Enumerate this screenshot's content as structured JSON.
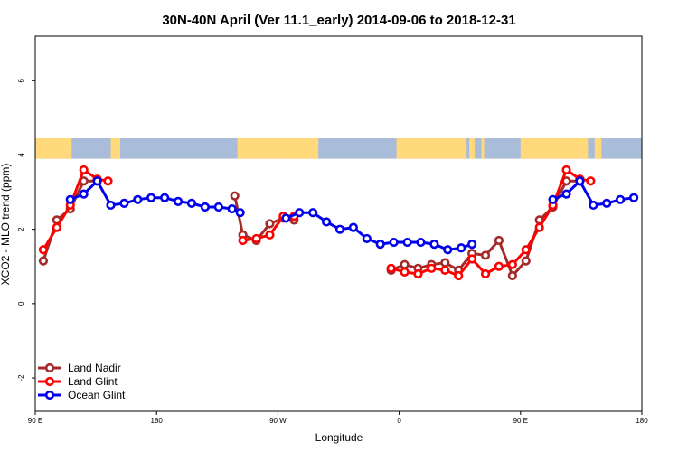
{
  "chart_data": {
    "type": "line",
    "title": "30N-40N April (Ver 11.1_early)   2014-09-06 to 2018-12-31",
    "xlabel": "Longitude",
    "ylabel": "XCO2 - MLO trend (ppm)",
    "xlim": [
      90,
      540
    ],
    "ylim": [
      -2.9,
      7.2
    ],
    "x_ticks": [
      {
        "value": 90,
        "label": "90 E"
      },
      {
        "value": 180,
        "label": "180"
      },
      {
        "value": 270,
        "label": "90 W"
      },
      {
        "value": 360,
        "label": "0"
      },
      {
        "value": 450,
        "label": "90 E"
      },
      {
        "value": 540,
        "label": "180"
      }
    ],
    "y_ticks": [
      {
        "value": -2,
        "label": "-2"
      },
      {
        "value": 0,
        "label": "0"
      },
      {
        "value": 2,
        "label": "2"
      },
      {
        "value": 4,
        "label": "4"
      },
      {
        "value": 6,
        "label": "6"
      }
    ],
    "grid": false,
    "legend_position": "bottom-left",
    "land_mask_band": {
      "ymin": 3.9,
      "ymax": 4.45,
      "land_color": "#FFD97A",
      "ocean_color": "#A9BCD9",
      "land_x_ranges": [
        [
          90,
          117
        ],
        [
          146,
          153
        ],
        [
          240,
          243
        ],
        [
          242,
          298
        ],
        [
          280,
          300
        ],
        [
          358,
          410
        ],
        [
          412,
          416
        ],
        [
          421,
          423
        ],
        [
          450,
          494
        ],
        [
          486,
          491
        ],
        [
          493,
          496
        ],
        [
          495,
          500
        ],
        [
          505,
          510
        ]
      ]
    },
    "series": [
      {
        "name": "Land Nadir",
        "color": "#A52A2A",
        "segments": [
          [
            {
              "x": 96,
              "y": 1.15
            },
            {
              "x": 106,
              "y": 2.25
            },
            {
              "x": 116,
              "y": 2.55
            },
            {
              "x": 126,
              "y": 3.3
            },
            {
              "x": 136,
              "y": 3.3
            }
          ],
          [
            {
              "x": 238,
              "y": 2.9
            },
            {
              "x": 244,
              "y": 1.85
            },
            {
              "x": 254,
              "y": 1.7
            },
            {
              "x": 264,
              "y": 2.15
            },
            {
              "x": 274,
              "y": 2.3
            },
            {
              "x": 282,
              "y": 2.25
            }
          ],
          [
            {
              "x": 354,
              "y": 0.9
            },
            {
              "x": 364,
              "y": 1.05
            },
            {
              "x": 374,
              "y": 0.95
            },
            {
              "x": 384,
              "y": 1.05
            },
            {
              "x": 394,
              "y": 1.1
            },
            {
              "x": 404,
              "y": 0.9
            },
            {
              "x": 414,
              "y": 1.35
            },
            {
              "x": 424,
              "y": 1.3
            },
            {
              "x": 434,
              "y": 1.7
            },
            {
              "x": 444,
              "y": 0.75
            },
            {
              "x": 454,
              "y": 1.15
            },
            {
              "x": 464,
              "y": 2.25
            },
            {
              "x": 474,
              "y": 2.6
            },
            {
              "x": 484,
              "y": 3.3
            },
            {
              "x": 494,
              "y": 3.3
            }
          ]
        ]
      },
      {
        "name": "Land Glint",
        "color": "#FF0000",
        "segments": [
          [
            {
              "x": 96,
              "y": 1.45
            },
            {
              "x": 106,
              "y": 2.05
            },
            {
              "x": 116,
              "y": 2.65
            },
            {
              "x": 126,
              "y": 3.6
            },
            {
              "x": 136,
              "y": 3.35
            },
            {
              "x": 144,
              "y": 3.3
            }
          ],
          [
            {
              "x": 244,
              "y": 1.7
            },
            {
              "x": 254,
              "y": 1.75
            },
            {
              "x": 264,
              "y": 1.85
            },
            {
              "x": 274,
              "y": 2.35
            },
            {
              "x": 282,
              "y": 2.35
            }
          ],
          [
            {
              "x": 354,
              "y": 0.95
            },
            {
              "x": 364,
              "y": 0.85
            },
            {
              "x": 374,
              "y": 0.8
            },
            {
              "x": 384,
              "y": 0.95
            },
            {
              "x": 394,
              "y": 0.9
            },
            {
              "x": 404,
              "y": 0.75
            },
            {
              "x": 414,
              "y": 1.2
            },
            {
              "x": 424,
              "y": 0.8
            },
            {
              "x": 434,
              "y": 1.0
            },
            {
              "x": 444,
              "y": 1.05
            },
            {
              "x": 454,
              "y": 1.45
            },
            {
              "x": 464,
              "y": 2.05
            },
            {
              "x": 474,
              "y": 2.65
            },
            {
              "x": 484,
              "y": 3.6
            },
            {
              "x": 494,
              "y": 3.35
            },
            {
              "x": 502,
              "y": 3.3
            }
          ]
        ]
      },
      {
        "name": "Ocean Glint",
        "color": "#0000EE",
        "segments": [
          [
            {
              "x": 116,
              "y": 2.8
            },
            {
              "x": 126,
              "y": 2.95
            },
            {
              "x": 136,
              "y": 3.3
            },
            {
              "x": 146,
              "y": 2.65
            },
            {
              "x": 156,
              "y": 2.7
            },
            {
              "x": 166,
              "y": 2.8
            },
            {
              "x": 176,
              "y": 2.85
            },
            {
              "x": 186,
              "y": 2.85
            },
            {
              "x": 196,
              "y": 2.75
            },
            {
              "x": 206,
              "y": 2.7
            },
            {
              "x": 216,
              "y": 2.6
            },
            {
              "x": 226,
              "y": 2.6
            },
            {
              "x": 236,
              "y": 2.55
            },
            {
              "x": 242,
              "y": 2.45
            }
          ],
          [
            {
              "x": 276,
              "y": 2.3
            },
            {
              "x": 286,
              "y": 2.45
            },
            {
              "x": 296,
              "y": 2.45
            },
            {
              "x": 306,
              "y": 2.2
            },
            {
              "x": 316,
              "y": 2.0
            },
            {
              "x": 326,
              "y": 2.05
            },
            {
              "x": 336,
              "y": 1.75
            },
            {
              "x": 346,
              "y": 1.6
            },
            {
              "x": 356,
              "y": 1.65
            },
            {
              "x": 366,
              "y": 1.65
            },
            {
              "x": 376,
              "y": 1.65
            },
            {
              "x": 386,
              "y": 1.6
            },
            {
              "x": 396,
              "y": 1.45
            },
            {
              "x": 406,
              "y": 1.5
            },
            {
              "x": 414,
              "y": 1.6
            }
          ],
          [
            {
              "x": 474,
              "y": 2.8
            },
            {
              "x": 484,
              "y": 2.95
            },
            {
              "x": 494,
              "y": 3.3
            },
            {
              "x": 504,
              "y": 2.65
            },
            {
              "x": 514,
              "y": 2.7
            },
            {
              "x": 524,
              "y": 2.8
            },
            {
              "x": 534,
              "y": 2.85
            }
          ]
        ]
      }
    ]
  }
}
